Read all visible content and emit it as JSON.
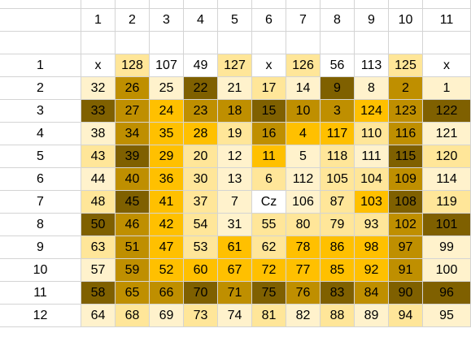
{
  "sheet": {
    "colors": {
      "pale": "#fff2cc",
      "light": "#ffe699",
      "gold": "#ffc000",
      "mustard": "#bf8f00",
      "olive": "#7f6000",
      "white": "#ffffff"
    },
    "column_headers": [
      "1",
      "2",
      "3",
      "4",
      "5",
      "6",
      "7",
      "8",
      "9",
      "10",
      "11"
    ],
    "rows": [
      {
        "label": "1",
        "cells": [
          {
            "v": "x",
            "c": "white"
          },
          {
            "v": "128",
            "c": "light"
          },
          {
            "v": "107",
            "c": "white"
          },
          {
            "v": "49",
            "c": "white"
          },
          {
            "v": "127",
            "c": "light"
          },
          {
            "v": "x",
            "c": "white"
          },
          {
            "v": "126",
            "c": "light"
          },
          {
            "v": "56",
            "c": "white"
          },
          {
            "v": "113",
            "c": "white"
          },
          {
            "v": "125",
            "c": "light"
          },
          {
            "v": "x",
            "c": "white"
          }
        ]
      },
      {
        "label": "2",
        "cells": [
          {
            "v": "32",
            "c": "pale"
          },
          {
            "v": "26",
            "c": "mustard"
          },
          {
            "v": "25",
            "c": "pale"
          },
          {
            "v": "22",
            "c": "olive"
          },
          {
            "v": "21",
            "c": "pale"
          },
          {
            "v": "17",
            "c": "light"
          },
          {
            "v": "14",
            "c": "pale"
          },
          {
            "v": "9",
            "c": "olive"
          },
          {
            "v": "8",
            "c": "pale"
          },
          {
            "v": "2",
            "c": "mustard"
          },
          {
            "v": "1",
            "c": "pale"
          }
        ]
      },
      {
        "label": "3",
        "cells": [
          {
            "v": "33",
            "c": "olive"
          },
          {
            "v": "27",
            "c": "mustard"
          },
          {
            "v": "24",
            "c": "gold"
          },
          {
            "v": "23",
            "c": "mustard"
          },
          {
            "v": "18",
            "c": "mustard"
          },
          {
            "v": "15",
            "c": "olive"
          },
          {
            "v": "10",
            "c": "mustard"
          },
          {
            "v": "3",
            "c": "mustard"
          },
          {
            "v": "124",
            "c": "gold"
          },
          {
            "v": "123",
            "c": "mustard"
          },
          {
            "v": "122",
            "c": "olive"
          }
        ]
      },
      {
        "label": "4",
        "cells": [
          {
            "v": "38",
            "c": "pale"
          },
          {
            "v": "34",
            "c": "mustard"
          },
          {
            "v": "35",
            "c": "gold"
          },
          {
            "v": "28",
            "c": "gold"
          },
          {
            "v": "19",
            "c": "light"
          },
          {
            "v": "16",
            "c": "mustard"
          },
          {
            "v": "4",
            "c": "gold"
          },
          {
            "v": "117",
            "c": "gold"
          },
          {
            "v": "110",
            "c": "light"
          },
          {
            "v": "116",
            "c": "mustard"
          },
          {
            "v": "121",
            "c": "pale"
          }
        ]
      },
      {
        "label": "5",
        "cells": [
          {
            "v": "43",
            "c": "light"
          },
          {
            "v": "39",
            "c": "olive"
          },
          {
            "v": "29",
            "c": "gold"
          },
          {
            "v": "20",
            "c": "light"
          },
          {
            "v": "12",
            "c": "pale"
          },
          {
            "v": "11",
            "c": "gold"
          },
          {
            "v": "5",
            "c": "pale"
          },
          {
            "v": "118",
            "c": "light"
          },
          {
            "v": "111",
            "c": "pale"
          },
          {
            "v": "115",
            "c": "olive"
          },
          {
            "v": "120",
            "c": "light"
          }
        ]
      },
      {
        "label": "6",
        "cells": [
          {
            "v": "44",
            "c": "pale"
          },
          {
            "v": "40",
            "c": "mustard"
          },
          {
            "v": "36",
            "c": "gold"
          },
          {
            "v": "30",
            "c": "light"
          },
          {
            "v": "13",
            "c": "pale"
          },
          {
            "v": "6",
            "c": "light"
          },
          {
            "v": "112",
            "c": "pale"
          },
          {
            "v": "105",
            "c": "light"
          },
          {
            "v": "104",
            "c": "light"
          },
          {
            "v": "109",
            "c": "mustard"
          },
          {
            "v": "114",
            "c": "pale"
          }
        ]
      },
      {
        "label": "7",
        "cells": [
          {
            "v": "48",
            "c": "light"
          },
          {
            "v": "45",
            "c": "olive"
          },
          {
            "v": "41",
            "c": "gold"
          },
          {
            "v": "37",
            "c": "light"
          },
          {
            "v": "7",
            "c": "pale"
          },
          {
            "v": "Cz",
            "c": "white"
          },
          {
            "v": "106",
            "c": "pale"
          },
          {
            "v": "87",
            "c": "light"
          },
          {
            "v": "103",
            "c": "gold"
          },
          {
            "v": "108",
            "c": "olive"
          },
          {
            "v": "119",
            "c": "light"
          }
        ]
      },
      {
        "label": "8",
        "cells": [
          {
            "v": "50",
            "c": "olive"
          },
          {
            "v": "46",
            "c": "mustard"
          },
          {
            "v": "42",
            "c": "gold"
          },
          {
            "v": "54",
            "c": "light"
          },
          {
            "v": "31",
            "c": "pale"
          },
          {
            "v": "55",
            "c": "light"
          },
          {
            "v": "80",
            "c": "light"
          },
          {
            "v": "79",
            "c": "light"
          },
          {
            "v": "93",
            "c": "light"
          },
          {
            "v": "102",
            "c": "mustard"
          },
          {
            "v": "101",
            "c": "olive"
          }
        ]
      },
      {
        "label": "9",
        "cells": [
          {
            "v": "63",
            "c": "light"
          },
          {
            "v": "51",
            "c": "mustard"
          },
          {
            "v": "47",
            "c": "gold"
          },
          {
            "v": "53",
            "c": "light"
          },
          {
            "v": "61",
            "c": "gold"
          },
          {
            "v": "62",
            "c": "light"
          },
          {
            "v": "78",
            "c": "gold"
          },
          {
            "v": "86",
            "c": "gold"
          },
          {
            "v": "98",
            "c": "gold"
          },
          {
            "v": "97",
            "c": "mustard"
          },
          {
            "v": "99",
            "c": "pale"
          }
        ]
      },
      {
        "label": "10",
        "cells": [
          {
            "v": "57",
            "c": "pale"
          },
          {
            "v": "59",
            "c": "mustard"
          },
          {
            "v": "52",
            "c": "gold"
          },
          {
            "v": "60",
            "c": "gold"
          },
          {
            "v": "67",
            "c": "gold"
          },
          {
            "v": "72",
            "c": "gold"
          },
          {
            "v": "77",
            "c": "gold"
          },
          {
            "v": "85",
            "c": "gold"
          },
          {
            "v": "92",
            "c": "gold"
          },
          {
            "v": "91",
            "c": "mustard"
          },
          {
            "v": "100",
            "c": "pale"
          }
        ]
      },
      {
        "label": "11",
        "cells": [
          {
            "v": "58",
            "c": "olive"
          },
          {
            "v": "65",
            "c": "mustard"
          },
          {
            "v": "66",
            "c": "mustard"
          },
          {
            "v": "70",
            "c": "olive"
          },
          {
            "v": "71",
            "c": "mustard"
          },
          {
            "v": "75",
            "c": "olive"
          },
          {
            "v": "76",
            "c": "mustard"
          },
          {
            "v": "83",
            "c": "olive"
          },
          {
            "v": "84",
            "c": "mustard"
          },
          {
            "v": "90",
            "c": "olive"
          },
          {
            "v": "96",
            "c": "olive"
          }
        ]
      },
      {
        "label": "12",
        "cells": [
          {
            "v": "64",
            "c": "pale"
          },
          {
            "v": "68",
            "c": "light"
          },
          {
            "v": "69",
            "c": "pale"
          },
          {
            "v": "73",
            "c": "light"
          },
          {
            "v": "74",
            "c": "pale"
          },
          {
            "v": "81",
            "c": "light"
          },
          {
            "v": "82",
            "c": "pale"
          },
          {
            "v": "88",
            "c": "light"
          },
          {
            "v": "89",
            "c": "pale"
          },
          {
            "v": "94",
            "c": "light"
          },
          {
            "v": "95",
            "c": "pale"
          }
        ]
      }
    ]
  }
}
